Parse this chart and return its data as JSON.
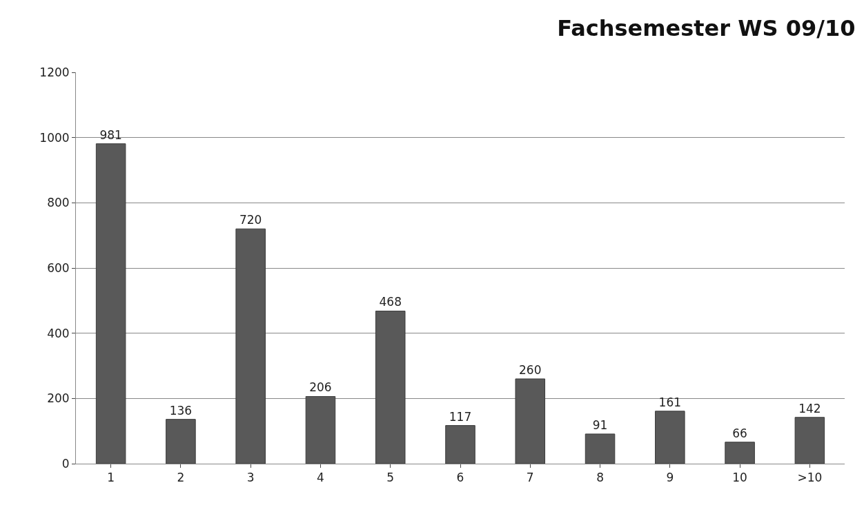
{
  "chart_data": {
    "type": "bar",
    "title": "Fachsemester WS 09/10",
    "categories": [
      "1",
      "2",
      "3",
      "4",
      "5",
      "6",
      "7",
      "8",
      "9",
      "10",
      ">10"
    ],
    "values": [
      981,
      136,
      720,
      206,
      468,
      117,
      260,
      91,
      161,
      66,
      142
    ],
    "color": "#595959",
    "ylim": [
      0,
      1200
    ],
    "yticks": [
      0,
      200,
      400,
      600,
      800,
      1000,
      1200
    ],
    "grid": "y",
    "data_labels": true,
    "legend": false
  }
}
